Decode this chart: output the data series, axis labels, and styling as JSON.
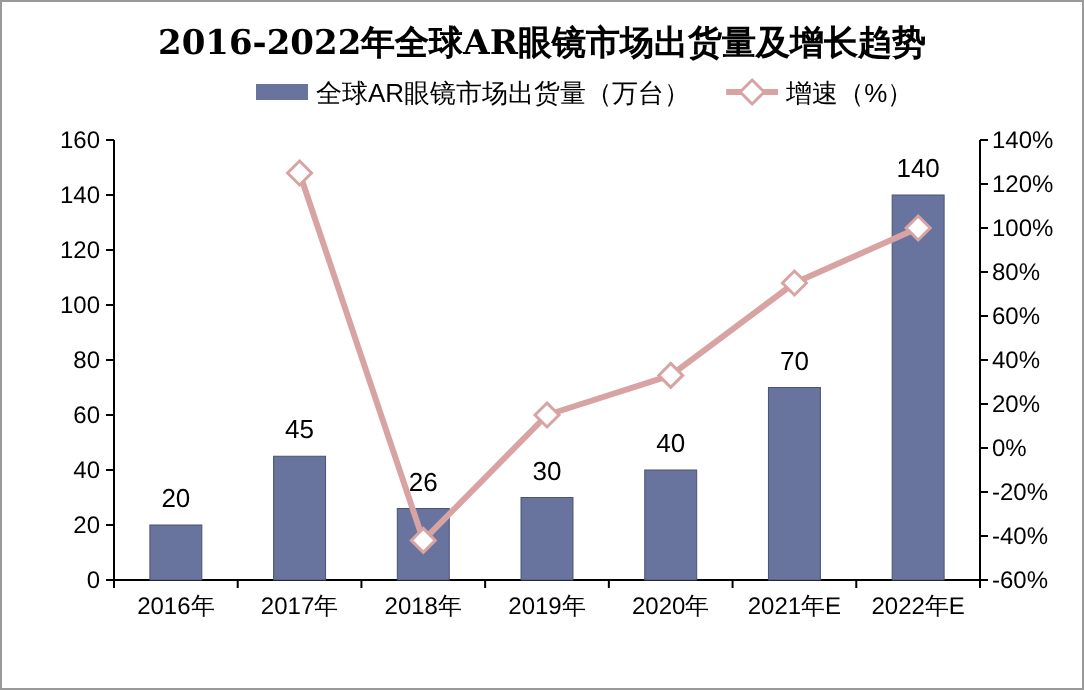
{
  "chart_data": {
    "type": "bar",
    "title": "2016-2022年全球AR眼镜市场出货量及增长趋势",
    "categories": [
      "2016年",
      "2017年",
      "2018年",
      "2019年",
      "2020年",
      "2021年E",
      "2022年E"
    ],
    "series": [
      {
        "name": "全球AR眼镜市场出货量（万台）",
        "color": "#68739e",
        "values": [
          20,
          45,
          26,
          30,
          40,
          70,
          140
        ],
        "value_labels": [
          "20",
          "45",
          "26",
          "30",
          "40",
          "70",
          "140"
        ]
      },
      {
        "name": "增速（%）",
        "type": "line",
        "axis": "y2",
        "color": "#d8a3a3",
        "marker": "diamond",
        "values": [
          null,
          125,
          -42,
          15,
          33,
          75,
          100
        ]
      }
    ],
    "ylim": [
      0,
      160
    ],
    "yticks": [
      0,
      20,
      40,
      60,
      80,
      100,
      120,
      140,
      160
    ],
    "y2lim": [
      -60,
      140
    ],
    "y2ticks": [
      {
        "value": -60,
        "label": "-60%"
      },
      {
        "value": -40,
        "label": "-40%"
      },
      {
        "value": -20,
        "label": "-20%"
      },
      {
        "value": 0,
        "label": "0%"
      },
      {
        "value": 20,
        "label": "20%"
      },
      {
        "value": 40,
        "label": "40%"
      },
      {
        "value": 60,
        "label": "60%"
      },
      {
        "value": 80,
        "label": "80%"
      },
      {
        "value": 100,
        "label": "100%"
      },
      {
        "value": 120,
        "label": "120%"
      },
      {
        "value": 140,
        "label": "140%"
      }
    ],
    "legend": "top",
    "grid": false
  }
}
